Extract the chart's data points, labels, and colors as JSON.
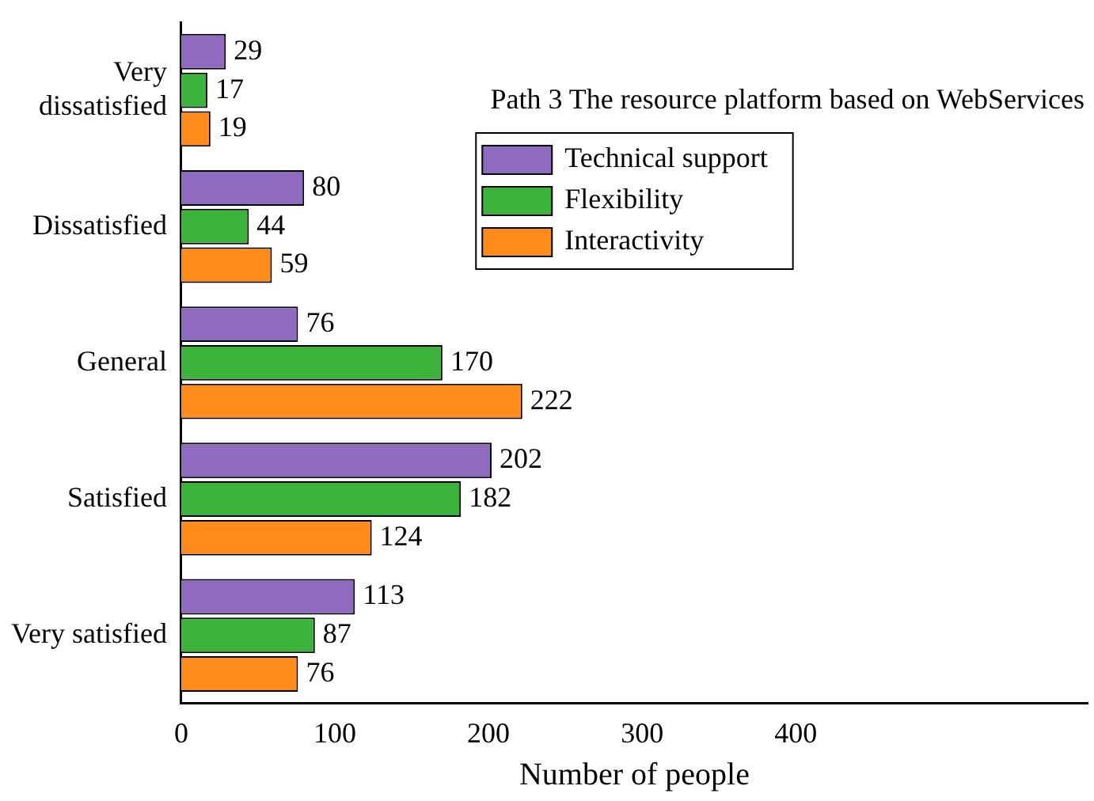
{
  "chart_data": {
    "type": "bar",
    "orientation": "horizontal",
    "title": "Path 3 The resource platform based on WebServices",
    "xlabel": "Number of people",
    "categories": [
      "Very dissatisfied",
      "Dissatisfied",
      "General",
      "Satisfied",
      "Very satisfied"
    ],
    "series": [
      {
        "name": "Technical support",
        "color": "#8e6bbf",
        "values": [
          29,
          80,
          76,
          202,
          113
        ]
      },
      {
        "name": "Flexibility",
        "color": "#3cb43c",
        "values": [
          17,
          44,
          170,
          182,
          87
        ]
      },
      {
        "name": "Interactivity",
        "color": "#ff8c1a",
        "values": [
          19,
          59,
          222,
          124,
          76
        ]
      }
    ],
    "xlim": [
      0,
      590
    ],
    "xticks": [
      0,
      100,
      200,
      300,
      400
    ],
    "grid": false,
    "legend": "top",
    "data_labels": true
  }
}
